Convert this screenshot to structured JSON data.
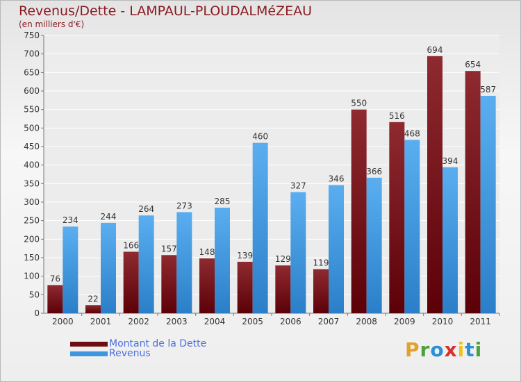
{
  "chart_data": {
    "type": "bar",
    "title": "Revenus/Dette - LAMPAUL-PLOUDALMéZEAU",
    "subtitle": "(en milliers d'€)",
    "categories": [
      "2000",
      "2001",
      "2002",
      "2003",
      "2004",
      "2005",
      "2006",
      "2007",
      "2008",
      "2009",
      "2010",
      "2011"
    ],
    "series": [
      {
        "name": "Montant de la Dette",
        "color": "#7a1018",
        "values": [
          76,
          22,
          166,
          157,
          148,
          139,
          129,
          119,
          550,
          516,
          694,
          654
        ]
      },
      {
        "name": "Revenus",
        "color": "#3c97e0",
        "values": [
          234,
          244,
          264,
          273,
          285,
          460,
          327,
          346,
          366,
          468,
          394,
          587
        ]
      }
    ],
    "ylim": [
      0,
      750
    ],
    "yticks": [
      0,
      50,
      100,
      150,
      200,
      250,
      300,
      350,
      400,
      450,
      500,
      550,
      600,
      650,
      700,
      750
    ],
    "grid": true,
    "legend_position": "bottom-left"
  },
  "branding": {
    "logo_letters": [
      "P",
      "r",
      "o",
      "x",
      "i",
      "t",
      "i"
    ],
    "logo_colors": [
      "#e2a12b",
      "#4da13c",
      "#2e8fd3",
      "#d9302c",
      "#f0c21c",
      "#2e8fd3",
      "#4da13c"
    ]
  }
}
